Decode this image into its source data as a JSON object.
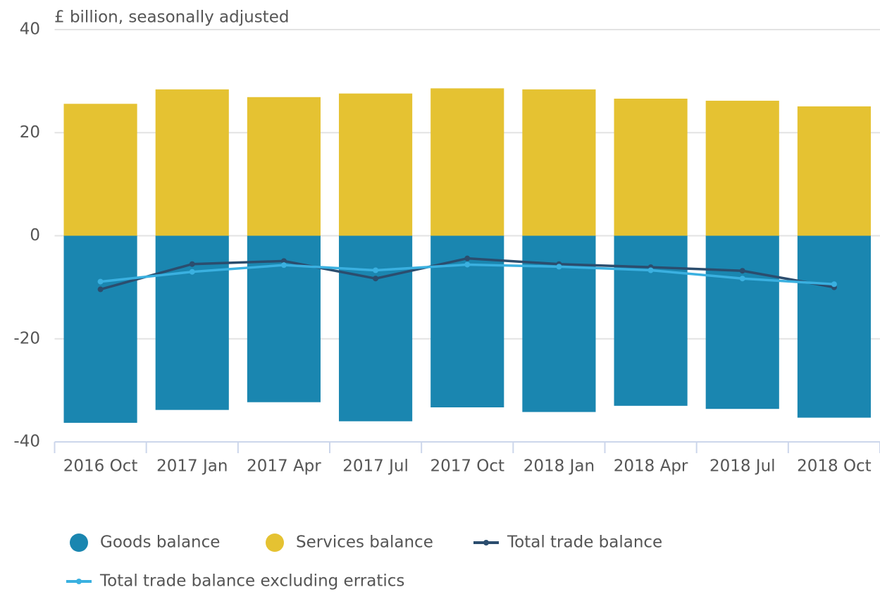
{
  "chart_data": {
    "type": "bar",
    "y_label": "£ billion, seasonally adjusted",
    "categories": [
      "2016 Oct",
      "2017 Jan",
      "2017 Apr",
      "2017 Jul",
      "2017 Oct",
      "2018 Jan",
      "2018 Apr",
      "2018 Jul",
      "2018 Oct"
    ],
    "series": [
      {
        "name": "Goods balance",
        "type": "bar",
        "color": "#1a86b0",
        "values": [
          -36.3,
          -33.8,
          -32.3,
          -36.0,
          -33.3,
          -34.2,
          -33.0,
          -33.6,
          -35.3
        ]
      },
      {
        "name": "Services balance",
        "type": "bar",
        "color": "#e5c232",
        "values": [
          25.6,
          28.4,
          26.9,
          27.6,
          28.6,
          28.4,
          26.6,
          26.2,
          25.1
        ]
      },
      {
        "name": "Total trade balance",
        "type": "line",
        "color": "#2b4d6e",
        "values": [
          -10.4,
          -5.5,
          -4.9,
          -8.3,
          -4.4,
          -5.5,
          -6.1,
          -6.8,
          -10.0
        ]
      },
      {
        "name": "Total trade balance excluding erratics",
        "type": "line",
        "color": "#3ab0e0",
        "values": [
          -8.9,
          -7.0,
          -5.7,
          -6.7,
          -5.6,
          -6.0,
          -6.7,
          -8.3,
          -9.4
        ]
      }
    ],
    "stacked": true,
    "ylim": [
      -40,
      40
    ],
    "yticks": [
      -40,
      -20,
      0,
      20,
      40
    ],
    "grid": true,
    "legend": "bottom"
  }
}
